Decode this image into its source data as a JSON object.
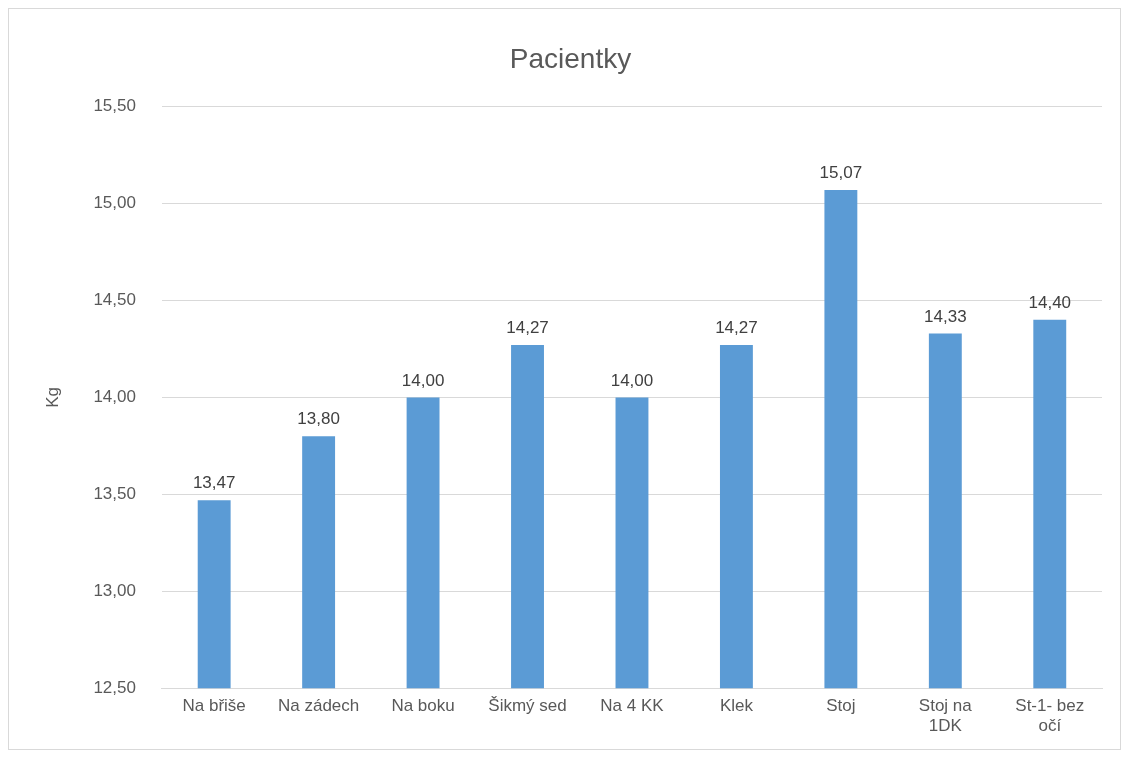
{
  "chart_data": {
    "type": "bar",
    "title": "Pacientky",
    "ylabel": "Kg",
    "categories": [
      "Na břiše",
      "Na zádech",
      "Na boku",
      "Šikmý sed",
      "Na 4 KK",
      "Klek",
      "Stoj",
      "Stoj na 1DK",
      "St-1- bez očí"
    ],
    "values": [
      13.47,
      13.8,
      14.0,
      14.27,
      14.0,
      14.27,
      15.07,
      14.33,
      14.4
    ],
    "value_labels": [
      "13,47",
      "13,80",
      "14,00",
      "14,27",
      "14,00",
      "14,27",
      "15,07",
      "14,33",
      "14,40"
    ],
    "color": "#5b9bd5",
    "ylim": [
      12.5,
      15.5
    ],
    "yticks": [
      {
        "value": 12.5,
        "label": "12,50"
      },
      {
        "value": 13,
        "label": "13,00"
      },
      {
        "value": 13.5,
        "label": "13,50"
      },
      {
        "value": 14,
        "label": "14,00"
      },
      {
        "value": 14.5,
        "label": "14,50"
      },
      {
        "value": 15,
        "label": "15,00"
      },
      {
        "value": 15.5,
        "label": "15,50"
      }
    ],
    "grid": "y",
    "legend": false
  }
}
